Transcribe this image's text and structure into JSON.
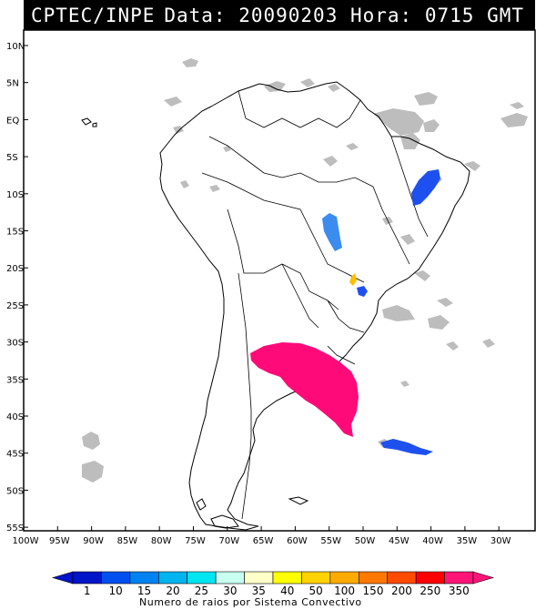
{
  "header": {
    "source": "CPTEC/INPE",
    "datetime": "Data: 20090203 Hora: 0715 GMT"
  },
  "map": {
    "lat_labels": [
      "10N",
      "5N",
      "EQ",
      "5S",
      "10S",
      "15S",
      "20S",
      "25S",
      "30S",
      "35S",
      "40S",
      "45S",
      "50S",
      "55S"
    ],
    "lon_labels": [
      "100W",
      "95W",
      "90W",
      "85W",
      "80W",
      "75W",
      "70W",
      "65W",
      "60W",
      "55W",
      "50W",
      "45W",
      "40W",
      "35W",
      "30W"
    ],
    "lat_range": [
      12,
      -56
    ],
    "lon_range": [
      -100,
      -27
    ],
    "colors": {
      "coastline": "#000000",
      "cloud": "#bdbdbd",
      "system_large": "#ff0a78",
      "system_blue": "#1e50f0",
      "system_lightblue": "#3c8cf0",
      "system_yellow": "#ffbe00"
    }
  },
  "legend": {
    "title": "Numero de raios por Sistema Convectivo",
    "ticks": [
      "1",
      "10",
      "15",
      "20",
      "25",
      "30",
      "35",
      "40",
      "50",
      "100",
      "150",
      "200",
      "250",
      "350"
    ],
    "colors": [
      "#0014c8",
      "#0050f0",
      "#0082f0",
      "#00b4f0",
      "#00e6f0",
      "#c8fff0",
      "#ffffc8",
      "#ffff00",
      "#ffd200",
      "#ffaa00",
      "#ff7800",
      "#ff4b00",
      "#ff0000",
      "#ff1478"
    ]
  }
}
